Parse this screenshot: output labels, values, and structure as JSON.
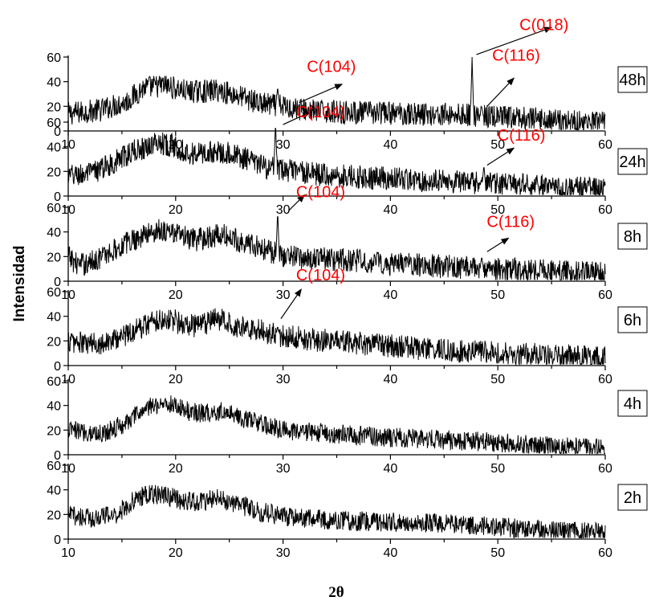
{
  "chart_data": {
    "type": "line",
    "ylabel": "Intensidad",
    "xlabel": "2θ",
    "xlim": [
      10,
      60
    ],
    "ylim": [
      0,
      60
    ],
    "x_ticks": [
      10,
      20,
      30,
      40,
      50,
      60
    ],
    "y_ticks": [
      0,
      20,
      40,
      60
    ],
    "grid": false,
    "panels": [
      {
        "tag": "48h",
        "profile": [
          [
            10,
            14
          ],
          [
            13,
            17
          ],
          [
            15.5,
            24
          ],
          [
            17,
            35
          ],
          [
            19,
            37
          ],
          [
            21,
            32
          ],
          [
            22.5,
            32
          ],
          [
            24,
            33
          ],
          [
            26,
            28
          ],
          [
            28,
            22
          ],
          [
            30,
            20
          ],
          [
            33,
            16
          ],
          [
            37,
            15
          ],
          [
            42,
            14
          ],
          [
            47,
            13
          ],
          [
            50,
            11
          ],
          [
            55,
            9
          ],
          [
            60,
            6
          ]
        ],
        "noise": 6,
        "peaks": [
          {
            "x": 29.5,
            "y": 36
          },
          {
            "x": 47.6,
            "y": 60
          },
          {
            "x": 48.5,
            "y": 20
          }
        ],
        "annotations": [
          {
            "text": "C(104)",
            "x": 34.5,
            "y": 48,
            "arrow_from": [
              31.5,
              23
            ],
            "arrow_to": [
              35.5,
              38
            ]
          },
          {
            "text": "C(018)",
            "x": 54.3,
            "y": 82,
            "arrow_from": [
              48,
              62
            ],
            "arrow_to": [
              55,
              84
            ]
          },
          {
            "text": "C(116)",
            "x": 51.7,
            "y": 57,
            "arrow_from": [
              49,
              20
            ],
            "arrow_to": [
              51.5,
              43
            ]
          }
        ]
      },
      {
        "tag": "24h",
        "profile": [
          [
            10,
            16
          ],
          [
            12,
            18
          ],
          [
            14,
            26
          ],
          [
            16,
            36
          ],
          [
            18.5,
            44
          ],
          [
            20,
            40
          ],
          [
            21.5,
            34
          ],
          [
            23,
            35
          ],
          [
            24.5,
            36
          ],
          [
            26.5,
            30
          ],
          [
            28.5,
            23
          ],
          [
            31,
            20
          ],
          [
            34,
            17
          ],
          [
            38,
            15
          ],
          [
            42,
            13
          ],
          [
            47,
            11
          ],
          [
            52,
            9
          ],
          [
            56,
            7
          ],
          [
            60,
            5
          ]
        ],
        "noise": 6,
        "peaks": [
          {
            "x": 29.3,
            "y": 60
          },
          {
            "x": 48.7,
            "y": 25
          }
        ],
        "annotations": [
          {
            "text": "C(104)",
            "x": 33.5,
            "y": 64,
            "arrow_from": [
              30,
              58
            ],
            "arrow_to": [
              32.5,
              68
            ]
          },
          {
            "text": "C(116)",
            "x": 52.2,
            "y": 45,
            "arrow_from": [
              49,
              25
            ],
            "arrow_to": [
              51.5,
              39
            ]
          }
        ]
      },
      {
        "tag": "8h",
        "profile": [
          [
            10,
            20
          ],
          [
            11,
            13
          ],
          [
            12,
            15
          ],
          [
            14,
            24
          ],
          [
            16,
            34
          ],
          [
            18.5,
            42
          ],
          [
            20,
            39
          ],
          [
            21.5,
            33
          ],
          [
            23,
            36
          ],
          [
            24.5,
            37
          ],
          [
            27,
            30
          ],
          [
            28.5,
            25
          ],
          [
            30,
            21
          ],
          [
            32,
            19
          ],
          [
            36,
            17
          ],
          [
            40,
            14
          ],
          [
            45,
            12
          ],
          [
            50,
            10
          ],
          [
            55,
            8
          ],
          [
            60,
            6
          ]
        ],
        "noise": 6,
        "peaks": [
          {
            "x": 29.5,
            "y": 57
          },
          {
            "x": 48.5,
            "y": 20
          }
        ],
        "annotations": [
          {
            "text": "C(104)",
            "x": 33.5,
            "y": 68,
            "arrow_from": [
              30.5,
              57
            ],
            "arrow_to": [
              32,
              70
            ]
          },
          {
            "text": "C(116)",
            "x": 51.2,
            "y": 44,
            "arrow_from": [
              49,
              24
            ],
            "arrow_to": [
              51,
              35
            ]
          }
        ]
      },
      {
        "tag": "6h",
        "profile": [
          [
            10,
            20
          ],
          [
            12,
            17
          ],
          [
            14,
            20
          ],
          [
            16,
            28
          ],
          [
            18,
            37
          ],
          [
            19.5,
            38
          ],
          [
            21,
            32
          ],
          [
            22.5,
            33
          ],
          [
            24,
            38
          ],
          [
            25.5,
            33
          ],
          [
            28,
            28
          ],
          [
            30,
            24
          ],
          [
            33,
            21
          ],
          [
            37,
            18
          ],
          [
            41,
            15
          ],
          [
            46,
            12
          ],
          [
            51,
            10
          ],
          [
            56,
            8
          ],
          [
            60,
            6
          ]
        ],
        "noise": 6,
        "peaks": [
          {
            "x": 29.5,
            "y": 32
          }
        ],
        "annotations": [
          {
            "text": "C(104)",
            "x": 33.5,
            "y": 69,
            "arrow_from": [
              29.8,
              38
            ],
            "arrow_to": [
              31.7,
              62
            ]
          }
        ]
      },
      {
        "tag": "4h",
        "profile": [
          [
            10,
            20
          ],
          [
            13,
            17
          ],
          [
            15,
            24
          ],
          [
            17,
            36
          ],
          [
            18.5,
            42
          ],
          [
            20,
            40
          ],
          [
            21.5,
            34
          ],
          [
            23,
            34
          ],
          [
            24.5,
            36
          ],
          [
            26.5,
            29
          ],
          [
            28.5,
            23
          ],
          [
            31,
            19
          ],
          [
            35,
            17
          ],
          [
            40,
            14
          ],
          [
            45,
            12
          ],
          [
            50,
            10
          ],
          [
            55,
            7
          ],
          [
            60,
            5
          ]
        ],
        "noise": 5,
        "peaks": [],
        "annotations": []
      },
      {
        "tag": "2h",
        "profile": [
          [
            10,
            20
          ],
          [
            12,
            17
          ],
          [
            14.5,
            20
          ],
          [
            16.5,
            34
          ],
          [
            17.5,
            36
          ],
          [
            19,
            36
          ],
          [
            20.5,
            31
          ],
          [
            22,
            30
          ],
          [
            24,
            33
          ],
          [
            26,
            28
          ],
          [
            28,
            22
          ],
          [
            31,
            17
          ],
          [
            35,
            15
          ],
          [
            40,
            14
          ],
          [
            45,
            13
          ],
          [
            50,
            10
          ],
          [
            55,
            7
          ],
          [
            60,
            5
          ]
        ],
        "noise": 5,
        "peaks": [],
        "annotations": []
      }
    ]
  },
  "colors": {
    "trace": "#000000",
    "annotation": "#ff0000",
    "arrow": "#000000"
  }
}
